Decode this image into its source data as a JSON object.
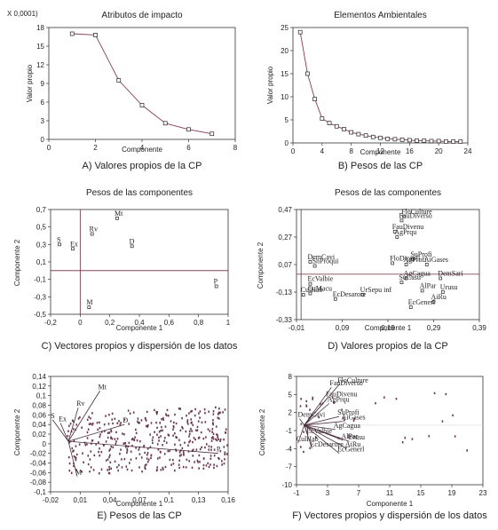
{
  "chart_data": [
    {
      "id": "A",
      "type": "line",
      "title": "Atributos de impacto",
      "caption": "A) Valores propios de la CP",
      "xlabel": "Componente",
      "ylabel": "Valor propio",
      "y_multiplier": "X 0,0001)",
      "x": [
        1,
        2,
        3,
        4,
        5,
        6,
        7
      ],
      "values": [
        17.0,
        16.8,
        9.5,
        5.5,
        2.6,
        1.6,
        0.9
      ],
      "xlim": [
        0,
        8
      ],
      "ylim": [
        0,
        18
      ],
      "xticks": [
        "0",
        "2",
        "4",
        "6",
        "8"
      ],
      "yticks": [
        "0",
        "3",
        "6",
        "9",
        "12",
        "15",
        "18"
      ]
    },
    {
      "id": "B",
      "type": "line",
      "title": "Elementos Ambientales",
      "caption": "B) Pesos de las CP",
      "xlabel": "Componente",
      "ylabel": "Valor propio",
      "x": [
        1,
        2,
        3,
        4,
        5,
        6,
        7,
        8,
        9,
        10,
        11,
        12,
        13,
        14,
        15,
        16,
        17,
        18,
        19,
        20,
        21,
        22,
        23
      ],
      "values": [
        24.0,
        15.0,
        9.5,
        5.3,
        4.3,
        3.6,
        3.0,
        2.3,
        1.9,
        1.6,
        1.3,
        1.1,
        0.9,
        0.8,
        0.7,
        0.6,
        0.5,
        0.5,
        0.4,
        0.4,
        0.3,
        0.3,
        0.3
      ],
      "xlim": [
        0,
        24
      ],
      "ylim": [
        0,
        25
      ],
      "xticks": [
        "0",
        "4",
        "8",
        "12",
        "16",
        "20",
        "24"
      ],
      "yticks": [
        "0",
        "5",
        "10",
        "15",
        "20",
        "25"
      ]
    },
    {
      "id": "C",
      "type": "scatter",
      "title": "Pesos de las componentes",
      "caption": "C) Vectores propios y dispersión de los datos",
      "xlabel": "Componente 1",
      "ylabel": "Componente 2",
      "xlim": [
        -0.2,
        1
      ],
      "ylim": [
        -0.5,
        0.7
      ],
      "xticks": [
        "-0,2",
        "0",
        "0,2",
        "0,4",
        "0,6",
        "0,8",
        "1"
      ],
      "yticks": [
        "-0,5",
        "-0,3",
        "-0,1",
        "0,1",
        "0,3",
        "0,5",
        "0,7"
      ],
      "points": [
        {
          "label": "Mt",
          "x": 0.25,
          "y": 0.6
        },
        {
          "label": "Rv",
          "x": 0.08,
          "y": 0.42
        },
        {
          "label": "S",
          "x": -0.14,
          "y": 0.3
        },
        {
          "label": "Ex",
          "x": -0.05,
          "y": 0.25
        },
        {
          "label": "D",
          "x": 0.35,
          "y": 0.28
        },
        {
          "label": "P",
          "x": 0.92,
          "y": -0.18
        },
        {
          "label": "M",
          "x": 0.06,
          "y": -0.42
        }
      ]
    },
    {
      "id": "D",
      "type": "scatter",
      "title": "Pesos de las componentes",
      "caption": "D) Valores propios de la CP",
      "xlabel": "Componente 1",
      "ylabel": "Componente 2",
      "xlim": [
        -0.01,
        0.39
      ],
      "ylim": [
        -0.33,
        0.47
      ],
      "xticks": [
        "-0,01",
        "0,09",
        "0,19",
        "0,29",
        "0,39"
      ],
      "yticks": [
        "-0,33",
        "-0,13",
        "0,07",
        "0,27",
        "0,47"
      ],
      "points": [
        {
          "label": "FloCulture",
          "x": 0.225,
          "y": 0.42
        },
        {
          "label": "FauDiverso",
          "x": 0.22,
          "y": 0.39
        },
        {
          "label": "FauDivenu",
          "x": 0.205,
          "y": 0.31
        },
        {
          "label": "AgPrqu",
          "x": 0.21,
          "y": 0.27
        },
        {
          "label": "DemCavi",
          "x": 0.02,
          "y": 0.09
        },
        {
          "label": "SnProqui",
          "x": 0.03,
          "y": 0.06
        },
        {
          "label": "SuProfi",
          "x": 0.245,
          "y": 0.11
        },
        {
          "label": "FloDiprofi",
          "x": 0.2,
          "y": 0.08
        },
        {
          "label": "AgProfi",
          "x": 0.23,
          "y": 0.07
        },
        {
          "label": "AiGases",
          "x": 0.275,
          "y": 0.07
        },
        {
          "label": "AgCagua",
          "x": 0.23,
          "y": -0.03
        },
        {
          "label": "DemSari",
          "x": 0.305,
          "y": -0.03
        },
        {
          "label": "SuCasu",
          "x": 0.22,
          "y": -0.06
        },
        {
          "label": "EcValbie",
          "x": 0.02,
          "y": -0.07
        },
        {
          "label": "AlPar",
          "x": 0.265,
          "y": -0.12
        },
        {
          "label": "Urusu",
          "x": 0.31,
          "y": -0.13
        },
        {
          "label": "CulHab",
          "x": 0.005,
          "y": -0.15
        },
        {
          "label": "CuMacu",
          "x": 0.02,
          "y": -0.14
        },
        {
          "label": "UrSepu inf",
          "x": 0.135,
          "y": -0.15
        },
        {
          "label": "EcDesarore",
          "x": 0.075,
          "y": -0.18
        },
        {
          "label": "AiRu",
          "x": 0.29,
          "y": -0.2
        },
        {
          "label": "EcGenerl",
          "x": 0.24,
          "y": -0.24
        }
      ]
    },
    {
      "id": "E",
      "type": "scatter",
      "title": "",
      "caption": "E) Pesos de las CP",
      "xlabel": "Componente 1",
      "ylabel": "Componente 2",
      "xlim": [
        -0.02,
        0.16
      ],
      "ylim": [
        -0.1,
        0.14
      ],
      "xticks": [
        "-0,02",
        "0,01",
        "0,04",
        "0,07",
        "0,1",
        "0,13",
        "0,16"
      ],
      "yticks": [
        "-0,1",
        "-0,08",
        "-0,06",
        "-0,04",
        "-0,02",
        "0",
        "0,02",
        "0,04",
        "0,06",
        "0,08",
        "0,1",
        "0,12",
        "0,14"
      ],
      "origin": [
        -0.002,
        0.005
      ],
      "vectors": [
        {
          "label": "Mt",
          "x": 0.03,
          "y": 0.11
        },
        {
          "label": "Rv",
          "x": 0.008,
          "y": 0.075
        },
        {
          "label": "S",
          "x": -0.018,
          "y": 0.05
        },
        {
          "label": "Ex",
          "x": -0.01,
          "y": 0.043
        },
        {
          "label": "D",
          "x": 0.055,
          "y": 0.04
        },
        {
          "label": "P",
          "x": 0.15,
          "y": -0.02
        },
        {
          "label": "M",
          "x": 0.007,
          "y": -0.068
        }
      ]
    },
    {
      "id": "F",
      "type": "scatter",
      "title": "",
      "caption": "F) Vectores propios y dispersión de los datos",
      "xlabel": "Componente 1",
      "ylabel": "Componente 2",
      "xlim": [
        -1,
        23
      ],
      "ylim": [
        -11,
        9
      ],
      "xticks": [
        "-1",
        "3",
        "7",
        "11",
        "15",
        "19",
        "23"
      ],
      "yticks": [
        "-10",
        "-7",
        "-4",
        "-1",
        "2",
        "5",
        "8"
      ],
      "vectors": [
        {
          "label": "FloCulture",
          "x": 4.5,
          "y": 7.5
        },
        {
          "label": "FauDiverso",
          "x": 3.5,
          "y": 7.0
        },
        {
          "label": "FauDivenu",
          "x": 3.0,
          "y": 5.0
        },
        {
          "label": "AgPrqu",
          "x": 3.2,
          "y": 4.0
        },
        {
          "label": "DemCavi",
          "x": -0.6,
          "y": 1.2
        },
        {
          "label": "SuProfi",
          "x": 4.5,
          "y": 1.6
        },
        {
          "label": "AiGases",
          "x": 5.0,
          "y": 0.7
        },
        {
          "label": "AgCagua",
          "x": 4.0,
          "y": -0.8
        },
        {
          "label": "EcValbie",
          "x": 0.5,
          "y": -1.8
        },
        {
          "label": "AlPar",
          "x": 5.0,
          "y": -2.8
        },
        {
          "label": "Urusu",
          "x": 5.8,
          "y": -3.0
        },
        {
          "label": "CulHab",
          "x": -0.8,
          "y": -3.3
        },
        {
          "label": "EcDesarore",
          "x": 1.0,
          "y": -4.3
        },
        {
          "label": "AiRu",
          "x": 5.5,
          "y": -4.3
        },
        {
          "label": "EcGenerl",
          "x": 4.5,
          "y": -5.2
        }
      ]
    }
  ]
}
